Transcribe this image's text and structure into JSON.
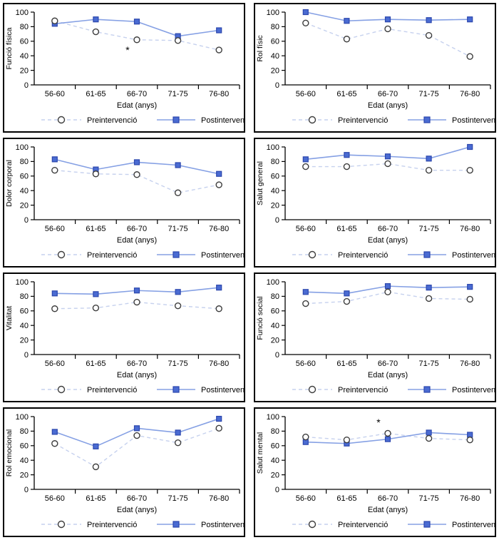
{
  "legend": {
    "pre_label": "Preintervenció",
    "post_label": "Postintervenció"
  },
  "colors": {
    "background": "#ffffff",
    "panel_border": "#000000",
    "axis": "#000000",
    "text": "#000000",
    "pre_line": "#c6d1ee",
    "pre_marker_fill": "#ffffff",
    "pre_marker_stroke": "#3d3d3d",
    "post_line": "#85a0e4",
    "post_marker_fill": "#4a6bd2",
    "post_marker_stroke": "#2c47ad",
    "annotation": "#9a9a9a"
  },
  "chart_data": [
    {
      "type": "line",
      "ylabel": "Funció física",
      "xlabel": "Edat (anys)",
      "categories": [
        "56-60",
        "61-65",
        "66-70",
        "71-75",
        "76-80"
      ],
      "ylim": [
        0,
        100
      ],
      "yticks": [
        0,
        20,
        40,
        60,
        80,
        100
      ],
      "grid": false,
      "legend_position": "bottom",
      "series": [
        {
          "name": "Preintervenció",
          "style": "dashed-open-circle",
          "values": [
            88,
            73,
            62,
            61,
            48
          ]
        },
        {
          "name": "Postintervenció",
          "style": "solid-filled-square",
          "values": [
            84,
            90,
            87,
            67,
            75
          ]
        }
      ],
      "annotations": [
        {
          "text": "*",
          "category": "66-70",
          "value": 47
        }
      ]
    },
    {
      "type": "line",
      "ylabel": "Rol físic",
      "xlabel": "Edat (anys)",
      "categories": [
        "56-60",
        "61-65",
        "66-70",
        "71-75",
        "76-80"
      ],
      "ylim": [
        0,
        100
      ],
      "yticks": [
        0,
        20,
        40,
        60,
        80,
        100
      ],
      "grid": false,
      "legend_position": "bottom",
      "series": [
        {
          "name": "Preintervenció",
          "style": "dashed-open-circle",
          "values": [
            85,
            63,
            77,
            68,
            39
          ]
        },
        {
          "name": "Postintervenció",
          "style": "solid-filled-square",
          "values": [
            100,
            88,
            90,
            89,
            90
          ]
        }
      ],
      "annotations": []
    },
    {
      "type": "line",
      "ylabel": "Dolor corporal",
      "xlabel": "Edat (anys)",
      "categories": [
        "56-60",
        "61-65",
        "66-70",
        "71-75",
        "76-80"
      ],
      "ylim": [
        0,
        100
      ],
      "yticks": [
        0,
        20,
        40,
        60,
        80,
        100
      ],
      "grid": false,
      "legend_position": "bottom",
      "series": [
        {
          "name": "Preintervenció",
          "style": "dashed-open-circle",
          "values": [
            68,
            63,
            62,
            37,
            48
          ]
        },
        {
          "name": "Postintervenció",
          "style": "solid-filled-square",
          "values": [
            83,
            69,
            79,
            75,
            63
          ]
        }
      ],
      "annotations": []
    },
    {
      "type": "line",
      "ylabel": "Salut general",
      "xlabel": "Edat (anys)",
      "categories": [
        "56-60",
        "61-65",
        "66-70",
        "71-75",
        "76-80"
      ],
      "ylim": [
        0,
        100
      ],
      "yticks": [
        0,
        20,
        40,
        60,
        80,
        100
      ],
      "grid": false,
      "legend_position": "bottom",
      "series": [
        {
          "name": "Preintervenció",
          "style": "dashed-open-circle",
          "values": [
            73,
            73,
            77,
            68,
            68
          ]
        },
        {
          "name": "Postintervenció",
          "style": "solid-filled-square",
          "values": [
            83,
            89,
            87,
            84,
            100
          ]
        }
      ],
      "annotations": []
    },
    {
      "type": "line",
      "ylabel": "Vitalitat",
      "xlabel": "Edat (anys)",
      "categories": [
        "56-60",
        "61-65",
        "66-70",
        "71-75",
        "76-80"
      ],
      "ylim": [
        0,
        100
      ],
      "yticks": [
        0,
        20,
        40,
        60,
        80,
        100
      ],
      "grid": false,
      "legend_position": "bottom",
      "series": [
        {
          "name": "Preintervenció",
          "style": "dashed-open-circle",
          "values": [
            63,
            64,
            72,
            67,
            63
          ]
        },
        {
          "name": "Postintervenció",
          "style": "solid-filled-square",
          "values": [
            84,
            83,
            88,
            86,
            92
          ]
        }
      ],
      "annotations": []
    },
    {
      "type": "line",
      "ylabel": "Funció social",
      "xlabel": "Edat (anys)",
      "categories": [
        "56-60",
        "61-65",
        "66-70",
        "71-75",
        "76-80"
      ],
      "ylim": [
        0,
        100
      ],
      "yticks": [
        0,
        20,
        40,
        60,
        80,
        100
      ],
      "grid": false,
      "legend_position": "bottom",
      "series": [
        {
          "name": "Preintervenció",
          "style": "dashed-open-circle",
          "values": [
            70,
            73,
            86,
            77,
            76
          ]
        },
        {
          "name": "Postintervenció",
          "style": "solid-filled-square",
          "values": [
            86,
            84,
            94,
            92,
            93
          ]
        }
      ],
      "annotations": []
    },
    {
      "type": "line",
      "ylabel": "Rol emocional",
      "xlabel": "Edat (anys)",
      "categories": [
        "56-60",
        "61-65",
        "66-70",
        "71-75",
        "76-80"
      ],
      "ylim": [
        0,
        100
      ],
      "yticks": [
        0,
        20,
        40,
        60,
        80,
        100
      ],
      "grid": false,
      "legend_position": "bottom",
      "series": [
        {
          "name": "Preintervenció",
          "style": "dashed-open-circle",
          "values": [
            63,
            31,
            74,
            64,
            84
          ]
        },
        {
          "name": "Postintervenció",
          "style": "solid-filled-square",
          "values": [
            79,
            59,
            84,
            78,
            97
          ]
        }
      ],
      "annotations": []
    },
    {
      "type": "line",
      "ylabel": "Salut mental",
      "xlabel": "Edat (anys)",
      "categories": [
        "56-60",
        "61-65",
        "66-70",
        "71-75",
        "76-80"
      ],
      "ylim": [
        0,
        100
      ],
      "yticks": [
        0,
        20,
        40,
        60,
        80,
        100
      ],
      "grid": false,
      "legend_position": "bottom",
      "series": [
        {
          "name": "Preintervenció",
          "style": "dashed-open-circle",
          "values": [
            72,
            68,
            77,
            70,
            68
          ]
        },
        {
          "name": "Postintervenció",
          "style": "solid-filled-square",
          "values": [
            65,
            63,
            69,
            78,
            75
          ]
        }
      ],
      "annotations": [
        {
          "text": "*",
          "category": "66-70",
          "value": 91
        }
      ]
    }
  ]
}
